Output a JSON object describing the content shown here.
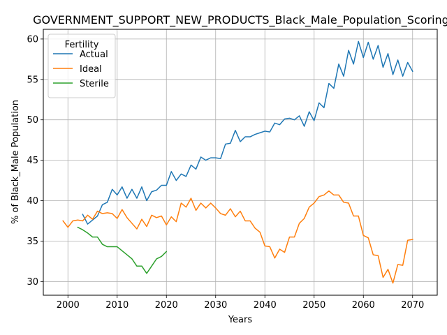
{
  "chart_data": {
    "type": "line",
    "title": "GOVERNMENT_SUPPORT_NEW_PRODUCTS_Black_Male_Population_Scoring",
    "xlabel": "Years",
    "ylabel": "% of Black_Male Population",
    "xlim": [
      1995,
      2075
    ],
    "ylim": [
      28.3,
      61.2
    ],
    "xticks": [
      2000,
      2010,
      2020,
      2030,
      2040,
      2050,
      2060,
      2070
    ],
    "yticks": [
      30,
      35,
      40,
      45,
      50,
      55,
      60
    ],
    "grid": true,
    "legend": {
      "title": "Fertility",
      "position": "upper-left"
    },
    "series": [
      {
        "name": "Actual",
        "color": "#1f77b4",
        "x": [
          2003,
          2004,
          2005,
          2006,
          2007,
          2008,
          2009,
          2010,
          2011,
          2012,
          2013,
          2014,
          2015,
          2016,
          2017,
          2018,
          2019,
          2020,
          2021,
          2022,
          2023,
          2024,
          2025,
          2026,
          2027,
          2028,
          2029,
          2030,
          2031,
          2032,
          2033,
          2034,
          2035,
          2036,
          2037,
          2038,
          2039,
          2040,
          2041,
          2042,
          2043,
          2044,
          2045,
          2046,
          2047,
          2048,
          2049,
          2050,
          2051,
          2052,
          2053,
          2054,
          2055,
          2056,
          2057,
          2058,
          2059,
          2060,
          2061,
          2062,
          2063,
          2064,
          2065,
          2066,
          2067,
          2068,
          2069,
          2070
        ],
        "values": [
          38.3,
          37.1,
          37.6,
          38.1,
          39.5,
          39.8,
          41.4,
          40.7,
          41.7,
          40.3,
          41.4,
          40.3,
          41.7,
          40.0,
          41.1,
          41.3,
          41.9,
          41.9,
          43.6,
          42.5,
          43.3,
          43.0,
          44.4,
          43.9,
          45.4,
          45.0,
          45.3,
          45.3,
          45.2,
          47.0,
          47.1,
          48.7,
          47.3,
          47.9,
          47.9,
          48.2,
          48.4,
          48.6,
          48.5,
          49.6,
          49.4,
          50.1,
          50.2,
          50.0,
          50.5,
          49.2,
          51.0,
          49.9,
          52.1,
          51.5,
          54.5,
          53.9,
          56.9,
          55.4,
          58.6,
          56.9,
          59.7,
          57.7,
          59.6,
          57.5,
          59.2,
          56.5,
          58.2,
          55.6,
          57.4,
          55.4,
          57.1,
          56.0
        ]
      },
      {
        "name": "Ideal",
        "color": "#ff7f0e",
        "x": [
          1999,
          2000,
          2001,
          2002,
          2003,
          2004,
          2005,
          2006,
          2007,
          2008,
          2009,
          2010,
          2011,
          2012,
          2013,
          2014,
          2015,
          2016,
          2017,
          2018,
          2019,
          2020,
          2021,
          2022,
          2023,
          2024,
          2025,
          2026,
          2027,
          2028,
          2029,
          2030,
          2031,
          2032,
          2033,
          2034,
          2035,
          2036,
          2037,
          2038,
          2039,
          2040,
          2041,
          2042,
          2043,
          2044,
          2045,
          2046,
          2047,
          2048,
          2049,
          2050,
          2051,
          2052,
          2053,
          2054,
          2055,
          2056,
          2057,
          2058,
          2059,
          2060,
          2061,
          2062,
          2063,
          2064,
          2065,
          2066,
          2067,
          2068,
          2069,
          2070
        ],
        "values": [
          37.5,
          36.7,
          37.5,
          37.6,
          37.5,
          38.2,
          37.7,
          38.7,
          38.4,
          38.5,
          38.4,
          37.8,
          38.9,
          37.9,
          37.2,
          36.5,
          37.7,
          36.8,
          38.2,
          37.9,
          38.1,
          37.0,
          38.0,
          37.4,
          39.7,
          39.2,
          40.3,
          38.8,
          39.7,
          39.1,
          39.7,
          39.1,
          38.4,
          38.2,
          39.0,
          38.0,
          38.7,
          37.5,
          37.5,
          36.6,
          36.1,
          34.4,
          34.3,
          32.9,
          34.0,
          33.6,
          35.5,
          35.5,
          37.2,
          37.8,
          39.2,
          39.7,
          40.5,
          40.7,
          41.2,
          40.7,
          40.7,
          39.8,
          39.7,
          38.1,
          38.1,
          35.7,
          35.4,
          33.3,
          33.2,
          30.5,
          31.5,
          29.8,
          32.1,
          32.0,
          35.1,
          35.2
        ]
      },
      {
        "name": "Sterile",
        "color": "#2ca02c",
        "x": [
          2002,
          2003,
          2004,
          2005,
          2006,
          2007,
          2008,
          2009,
          2010,
          2011,
          2012,
          2013,
          2014,
          2015,
          2016,
          2017,
          2018,
          2019,
          2020
        ],
        "values": [
          36.7,
          36.4,
          36.0,
          35.5,
          35.5,
          34.6,
          34.3,
          34.3,
          34.3,
          33.8,
          33.3,
          32.8,
          31.9,
          31.9,
          31.0,
          31.9,
          32.8,
          33.1,
          33.7
        ]
      }
    ]
  }
}
